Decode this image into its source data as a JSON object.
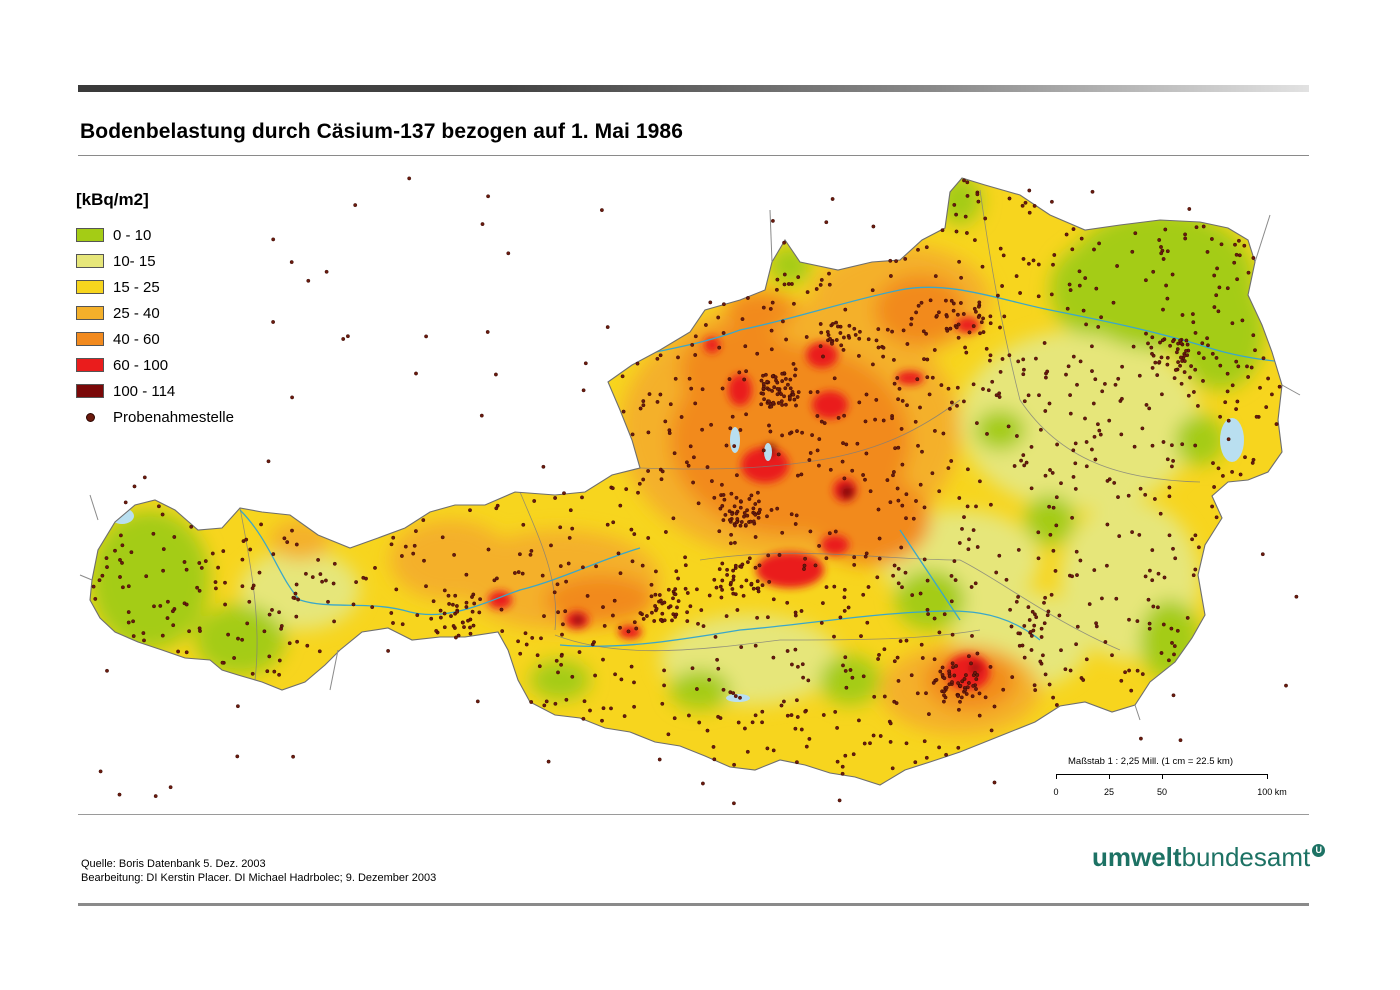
{
  "header": {
    "title": "Bodenbelastung durch Cäsium-137 bezogen auf 1. Mai 1986"
  },
  "legend": {
    "unit": "[kBq/m2]",
    "classes": [
      {
        "label": "0 - 10",
        "color": "#a4cc15"
      },
      {
        "label": "10- 15",
        "color": "#e6e67a"
      },
      {
        "label": "15 - 25",
        "color": "#f7d51e"
      },
      {
        "label": "25 - 40",
        "color": "#f4b02a"
      },
      {
        "label": "40 - 60",
        "color": "#f28a1e"
      },
      {
        "label": "60 - 100",
        "color": "#ea1c1c"
      },
      {
        "label": "100 - 114",
        "color": "#7a0808"
      }
    ],
    "sample_point_label": "Probenahmestelle",
    "sample_point_color": "#6b1a0e"
  },
  "scale_bar": {
    "label": "Maßstab 1 : 2,25 Mill. (1 cm = 22.5 km)",
    "ticks": [
      "0",
      "25",
      "50",
      "100 km"
    ]
  },
  "footer": {
    "source": "Quelle: Boris Datenbank 5. Dez. 2003",
    "editor": "Bearbeitung: DI Kerstin Placer. DI Michael Hadrbolec; 9. Dezember 2003"
  },
  "logo": {
    "part1": "umwelt",
    "part2": "bundesamt",
    "mark": "U"
  },
  "colors": {
    "water": "#b9dff0",
    "border": "#777777",
    "river": "#3aa7c9"
  }
}
